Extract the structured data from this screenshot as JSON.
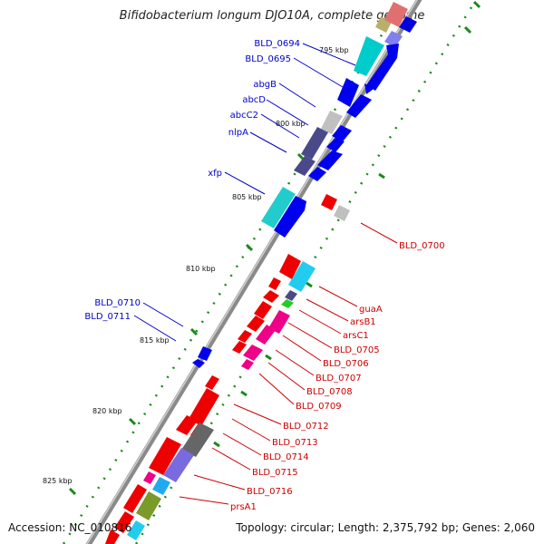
{
  "title": "Bifidobacterium longum DJO10A, complete genome",
  "accession": "Accession: NC_010816",
  "summary": "Topology: circular; Length: 2,375,792 bp; Genes: 2,060",
  "colors": {
    "backbone": "#8a8a8a",
    "forward_label": "#0000cc",
    "reverse_label": "#cc0000",
    "tick": "#1a8a1a",
    "forward_cds": "#0000ee",
    "reverse_cds": "#ee0000"
  },
  "scale_ticks": [
    {
      "label": "795 kbp",
      "pos": 795
    },
    {
      "label": "800 kbp",
      "pos": 800
    },
    {
      "label": "805 kbp",
      "pos": 805
    },
    {
      "label": "810 kbp",
      "pos": 810
    },
    {
      "label": "815 kbp",
      "pos": 815
    },
    {
      "label": "820 kbp",
      "pos": 820
    },
    {
      "label": "825 kbp",
      "pos": 825
    }
  ],
  "forward_labels": [
    "BLD_0694",
    "BLD_0695",
    "abgB",
    "abcD",
    "abcC2",
    "nlpA",
    "xfp",
    "BLD_0710",
    "BLD_0711"
  ],
  "reverse_labels": [
    "BLD_0700",
    "guaA",
    "arsB1",
    "arsC1",
    "BLD_0705",
    "BLD_0706",
    "BLD_0707",
    "BLD_0708",
    "BLD_0709",
    "BLD_0712",
    "BLD_0713",
    "BLD_0714",
    "BLD_0715",
    "BLD_0716",
    "prsA1"
  ]
}
